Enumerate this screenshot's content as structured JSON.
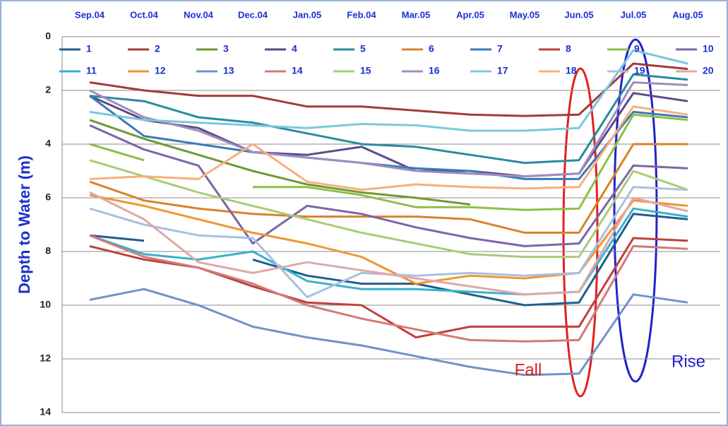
{
  "chart_data": {
    "type": "line",
    "y_label": "Depth to Water (m)",
    "categories": [
      "Sep.04",
      "Oct.04",
      "Nov.04",
      "Dec.04",
      "Jan.05",
      "Feb.04",
      "Mar.05",
      "Apr.05",
      "May.05",
      "Jun.05",
      "Jul.05",
      "Aug.05"
    ],
    "ylim": [
      0,
      14
    ],
    "yticks": [
      0,
      2,
      4,
      6,
      8,
      10,
      12,
      14
    ],
    "y_inverted": true,
    "grid": true,
    "series": [
      {
        "name": "1",
        "color": "#1f5f8b",
        "values": [
          7.4,
          7.6,
          null,
          8.3,
          8.9,
          9.2,
          9.2,
          9.6,
          10.0,
          9.9,
          6.6,
          6.8
        ]
      },
      {
        "name": "2",
        "color": "#a33a3a",
        "values": [
          1.7,
          2.0,
          2.2,
          2.2,
          2.6,
          2.6,
          2.75,
          2.9,
          2.95,
          2.9,
          1.0,
          1.2
        ]
      },
      {
        "name": "3",
        "color": "#6e9a35",
        "values": [
          3.1,
          3.8,
          4.4,
          5.0,
          5.5,
          5.8,
          6.0,
          6.25,
          null,
          null,
          null,
          null
        ]
      },
      {
        "name": "4",
        "color": "#5e4a86",
        "values": [
          2.2,
          3.1,
          3.4,
          4.3,
          4.4,
          4.1,
          5.0,
          5.0,
          5.2,
          5.1,
          2.1,
          2.4
        ]
      },
      {
        "name": "5",
        "color": "#2a8aa0",
        "values": [
          2.2,
          2.4,
          3.0,
          3.2,
          3.6,
          4.0,
          4.1,
          4.4,
          4.7,
          4.6,
          1.4,
          1.6
        ]
      },
      {
        "name": "6",
        "color": "#d9822b",
        "values": [
          5.4,
          6.1,
          6.4,
          6.6,
          6.7,
          6.7,
          6.7,
          6.8,
          7.3,
          7.3,
          4.0,
          4.0
        ]
      },
      {
        "name": "7",
        "color": "#3a7ab8",
        "values": [
          2.2,
          3.7,
          4.0,
          4.3,
          4.5,
          4.7,
          4.9,
          5.0,
          5.3,
          5.3,
          2.8,
          3.0
        ]
      },
      {
        "name": "8",
        "color": "#c0403c",
        "values": [
          7.8,
          8.3,
          8.6,
          9.3,
          9.9,
          10.0,
          11.2,
          10.8,
          10.8,
          10.8,
          7.5,
          7.6
        ]
      },
      {
        "name": "9",
        "color": "#8ebf48",
        "values": [
          4.0,
          4.6,
          null,
          5.6,
          5.6,
          5.9,
          6.35,
          6.35,
          6.45,
          6.4,
          2.9,
          3.1
        ]
      },
      {
        "name": "10",
        "color": "#7d64a8",
        "values": [
          3.3,
          4.2,
          4.8,
          7.7,
          6.3,
          6.6,
          7.1,
          7.5,
          7.8,
          7.7,
          4.8,
          4.9
        ]
      },
      {
        "name": "11",
        "color": "#3ab0cc",
        "values": [
          7.4,
          8.1,
          8.3,
          8.0,
          9.1,
          9.4,
          9.4,
          9.5,
          9.6,
          9.5,
          6.4,
          6.7
        ]
      },
      {
        "name": "12",
        "color": "#f0962e",
        "values": [
          5.9,
          6.3,
          6.8,
          7.3,
          7.7,
          8.2,
          9.2,
          8.9,
          9.0,
          8.8,
          6.1,
          6.3
        ]
      },
      {
        "name": "13",
        "color": "#6d93c9",
        "values": [
          9.8,
          9.4,
          10.0,
          10.8,
          11.2,
          11.5,
          11.9,
          12.3,
          12.6,
          12.55,
          9.6,
          9.9
        ]
      },
      {
        "name": "14",
        "color": "#d27a78",
        "values": [
          7.4,
          8.2,
          8.6,
          9.2,
          10.0,
          10.5,
          10.9,
          11.3,
          11.35,
          11.3,
          7.8,
          7.9
        ]
      },
      {
        "name": "15",
        "color": "#a9cc78",
        "values": [
          4.6,
          5.2,
          5.8,
          6.3,
          6.8,
          7.3,
          7.7,
          8.1,
          8.2,
          8.2,
          5.0,
          5.7
        ]
      },
      {
        "name": "16",
        "color": "#9f8cc0",
        "values": [
          2.0,
          3.0,
          3.5,
          4.3,
          4.5,
          4.7,
          5.0,
          5.1,
          5.2,
          5.1,
          1.7,
          1.8
        ]
      },
      {
        "name": "17",
        "color": "#7cc8dc",
        "values": [
          2.8,
          3.1,
          3.2,
          3.3,
          3.4,
          3.25,
          3.3,
          3.5,
          3.5,
          3.4,
          0.5,
          1.0
        ]
      },
      {
        "name": "18",
        "color": "#f7b07a",
        "values": [
          5.3,
          5.2,
          5.3,
          4.0,
          5.4,
          5.7,
          5.5,
          5.6,
          5.65,
          5.6,
          2.6,
          2.9
        ]
      },
      {
        "name": "19",
        "color": "#a8c0e0",
        "values": [
          6.4,
          7.0,
          7.4,
          7.5,
          9.7,
          8.8,
          8.9,
          8.8,
          8.9,
          8.8,
          5.6,
          5.7
        ]
      },
      {
        "name": "20",
        "color": "#e0a8a8",
        "values": [
          5.8,
          6.8,
          8.4,
          8.8,
          8.4,
          8.7,
          9.0,
          9.3,
          9.6,
          9.5,
          6.0,
          6.5
        ]
      }
    ],
    "annotations": [
      {
        "text": "Fall",
        "color": "#e02020"
      },
      {
        "text": "Rise",
        "color": "#2222cc"
      }
    ]
  }
}
